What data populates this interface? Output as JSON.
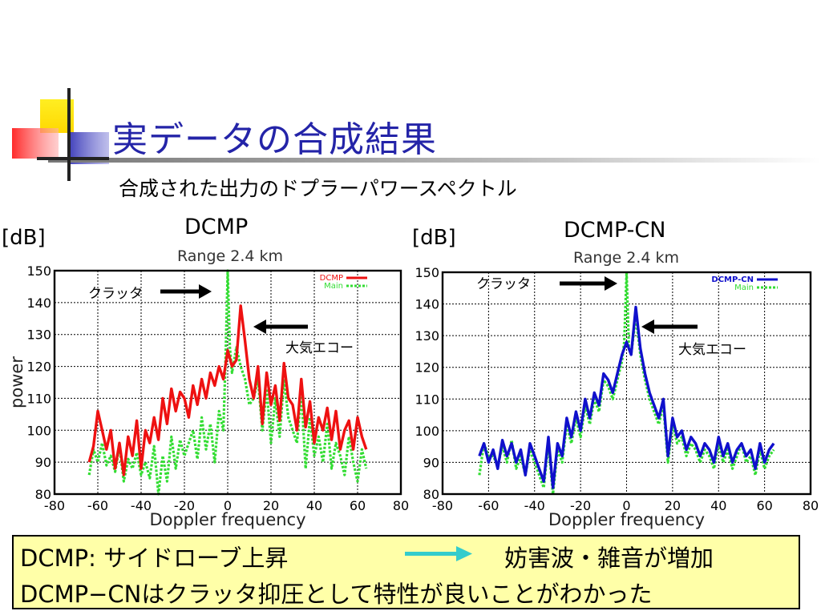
{
  "slide": {
    "title": "実データの合成結果",
    "subtitle": "合成された出力のドプラーパワースペクトル"
  },
  "summary": {
    "line1_left": "DCMP: サイドローブ上昇",
    "line1_right": "妨害波・雑音が増加",
    "line2": "DCMP−CNはクラッタ抑圧として特性が良いことがわかった",
    "arrow_color": "#33cccc"
  },
  "colors": {
    "title": "#2424a8",
    "dcmp": "#ee1111",
    "dcmp_cn": "#1010cc",
    "main": "#33dd33",
    "summary_bg": "#ffffa8"
  },
  "chart_data": [
    {
      "type": "line",
      "heading": "DCMP",
      "unit_label": "[dB]",
      "title": "Range 2.4 km",
      "xlabel": "Doppler frequency",
      "ylabel": "power",
      "xlim": [
        -80,
        80
      ],
      "ylim": [
        80,
        150
      ],
      "xticks": [
        -80,
        -60,
        -40,
        -20,
        0,
        20,
        40,
        60,
        80
      ],
      "yticks": [
        80,
        90,
        100,
        110,
        120,
        130,
        140,
        150
      ],
      "grid": true,
      "legend_position": "top-right",
      "annotations": [
        {
          "text": "クラッタ",
          "points_to": "x=0, clutter peak"
        },
        {
          "text": "大気エコー",
          "points_to": "x≈5, atmospheric echo"
        }
      ],
      "series": [
        {
          "name": "DCMP",
          "color": "#ee1111",
          "style": "solid",
          "x": [
            -64,
            -62,
            -60,
            -58,
            -56,
            -54,
            -52,
            -50,
            -48,
            -46,
            -44,
            -42,
            -40,
            -38,
            -36,
            -34,
            -32,
            -30,
            -28,
            -26,
            -24,
            -22,
            -20,
            -18,
            -16,
            -14,
            -12,
            -10,
            -8,
            -6,
            -4,
            -2,
            0,
            2,
            4,
            6,
            8,
            10,
            12,
            14,
            16,
            18,
            20,
            22,
            24,
            26,
            28,
            30,
            32,
            34,
            36,
            38,
            40,
            42,
            44,
            46,
            48,
            50,
            52,
            54,
            56,
            58,
            60,
            62,
            64
          ],
          "y": [
            90,
            95,
            106,
            100,
            94,
            100,
            88,
            96,
            86,
            98,
            92,
            103,
            88,
            100,
            96,
            104,
            97,
            110,
            102,
            113,
            106,
            112,
            110,
            104,
            114,
            108,
            116,
            110,
            118,
            114,
            120,
            116,
            125,
            120,
            122,
            139,
            128,
            116,
            110,
            120,
            102,
            118,
            108,
            114,
            103,
            121,
            110,
            108,
            100,
            116,
            101,
            109,
            96,
            104,
            100,
            107,
            97,
            106,
            94,
            100,
            103,
            94,
            104,
            98,
            94
          ]
        },
        {
          "name": "Main",
          "color": "#33dd33",
          "style": "dashed",
          "x": [
            -64,
            -62,
            -60,
            -58,
            -56,
            -54,
            -52,
            -50,
            -48,
            -46,
            -44,
            -42,
            -40,
            -38,
            -36,
            -34,
            -32,
            -30,
            -28,
            -26,
            -24,
            -22,
            -20,
            -18,
            -16,
            -14,
            -12,
            -10,
            -8,
            -6,
            -4,
            -2,
            -1,
            0,
            1,
            2,
            4,
            6,
            8,
            10,
            12,
            14,
            16,
            18,
            20,
            22,
            24,
            26,
            28,
            30,
            32,
            34,
            36,
            38,
            40,
            42,
            44,
            46,
            48,
            50,
            52,
            54,
            56,
            58,
            60,
            62,
            64
          ],
          "y": [
            86,
            94,
            90,
            96,
            89,
            92,
            87,
            95,
            84,
            91,
            88,
            93,
            86,
            90,
            85,
            95,
            80,
            92,
            84,
            98,
            88,
            97,
            92,
            96,
            100,
            91,
            104,
            94,
            102,
            90,
            106,
            100,
            122,
            150,
            126,
            118,
            126,
            120,
            116,
            108,
            110,
            116,
            100,
            113,
            96,
            110,
            98,
            116,
            104,
            100,
            96,
            112,
            88,
            104,
            92,
            98,
            90,
            102,
            88,
            96,
            92,
            86,
            98,
            90,
            84,
            94,
            88
          ]
        }
      ]
    },
    {
      "type": "line",
      "heading": "DCMP-CN",
      "unit_label": "[dB]",
      "title": "Range 2.4 km",
      "xlabel": "Doppler frequency",
      "ylabel": "power",
      "xlim": [
        -80,
        80
      ],
      "ylim": [
        80,
        150
      ],
      "xticks": [
        -80,
        -60,
        -40,
        -20,
        0,
        20,
        40,
        60,
        80
      ],
      "yticks": [
        80,
        90,
        100,
        110,
        120,
        130,
        140,
        150
      ],
      "grid": true,
      "legend_position": "top-right",
      "annotations": [
        {
          "text": "クラッタ",
          "points_to": "x=0, clutter peak"
        },
        {
          "text": "大気エコー",
          "points_to": "x≈4, atmospheric echo"
        }
      ],
      "series": [
        {
          "name": "DCMP-CN",
          "color": "#1010cc",
          "style": "solid",
          "x": [
            -64,
            -62,
            -60,
            -58,
            -56,
            -54,
            -52,
            -50,
            -48,
            -46,
            -44,
            -42,
            -40,
            -38,
            -36,
            -34,
            -32,
            -30,
            -28,
            -26,
            -24,
            -22,
            -20,
            -18,
            -16,
            -14,
            -12,
            -10,
            -8,
            -6,
            -4,
            -2,
            0,
            2,
            4,
            6,
            8,
            10,
            12,
            14,
            16,
            18,
            20,
            22,
            24,
            26,
            28,
            30,
            32,
            34,
            36,
            38,
            40,
            42,
            44,
            46,
            48,
            50,
            52,
            54,
            56,
            58,
            60,
            62,
            64
          ],
          "y": [
            92,
            96,
            90,
            94,
            88,
            97,
            92,
            96,
            90,
            94,
            86,
            96,
            92,
            88,
            84,
            98,
            82,
            96,
            92,
            104,
            98,
            106,
            100,
            110,
            104,
            112,
            108,
            118,
            116,
            112,
            118,
            124,
            128,
            124,
            139,
            126,
            118,
            112,
            108,
            104,
            110,
            92,
            104,
            98,
            100,
            94,
            98,
            96,
            92,
            96,
            94,
            90,
            98,
            92,
            96,
            90,
            94,
            96,
            92,
            94,
            88,
            96,
            90,
            94,
            96
          ]
        },
        {
          "name": "Main",
          "color": "#33dd33",
          "style": "dashed",
          "x": [
            -64,
            -62,
            -60,
            -58,
            -56,
            -54,
            -52,
            -50,
            -48,
            -46,
            -44,
            -42,
            -40,
            -38,
            -36,
            -34,
            -32,
            -30,
            -28,
            -26,
            -24,
            -22,
            -20,
            -18,
            -16,
            -14,
            -12,
            -10,
            -8,
            -6,
            -4,
            -2,
            -1,
            0,
            1,
            2,
            4,
            6,
            8,
            10,
            12,
            14,
            16,
            18,
            20,
            22,
            24,
            26,
            28,
            30,
            32,
            34,
            36,
            38,
            40,
            42,
            44,
            46,
            48,
            50,
            52,
            54,
            56,
            58,
            60,
            62,
            64
          ],
          "y": [
            86,
            96,
            92,
            92,
            89,
            95,
            90,
            97,
            88,
            92,
            86,
            94,
            90,
            86,
            82,
            96,
            80,
            94,
            90,
            102,
            96,
            104,
            98,
            108,
            102,
            110,
            106,
            116,
            114,
            110,
            116,
            122,
            128,
            150,
            126,
            124,
            136,
            124,
            116,
            110,
            106,
            102,
            108,
            90,
            102,
            96,
            98,
            92,
            96,
            94,
            90,
            94,
            92,
            88,
            96,
            90,
            94,
            88,
            92,
            96,
            90,
            92,
            86,
            94,
            88,
            92,
            94
          ]
        }
      ]
    }
  ]
}
